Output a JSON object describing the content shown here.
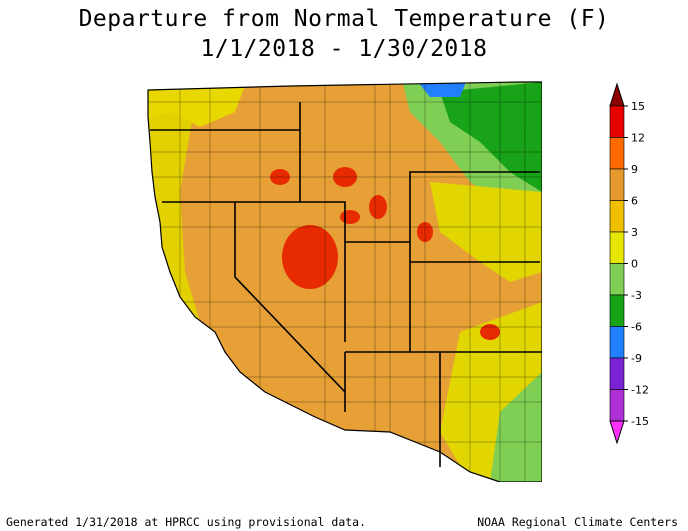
{
  "title": {
    "line1": "Departure from Normal Temperature (F)",
    "line2": "1/1/2018 - 1/30/2018"
  },
  "legend": {
    "ticks": [
      "15",
      "12",
      "9",
      "6",
      "3",
      "0",
      "-3",
      "-6",
      "-9",
      "-12",
      "-15"
    ],
    "colors": [
      "#8b0000",
      "#e80000",
      "#ff6a00",
      "#e69a2e",
      "#f0c000",
      "#e6e600",
      "#7fcf55",
      "#16a316",
      "#2080ff",
      "#7a22d6",
      "#b030d8",
      "#ff30ff"
    ]
  },
  "footer": {
    "left": "Generated 1/31/2018 at HPRCC using provisional data.",
    "right": "NOAA Regional Climate Centers"
  }
}
